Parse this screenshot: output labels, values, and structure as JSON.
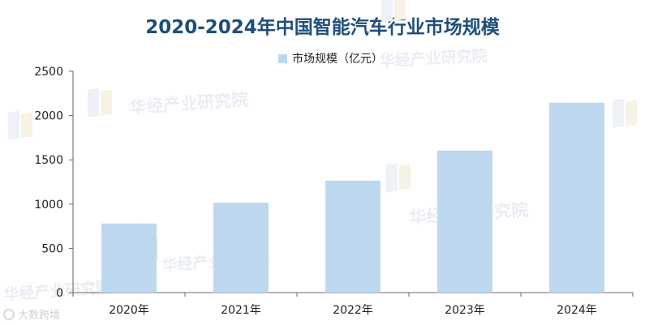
{
  "colors": {
    "title": "#1f4e79",
    "bar": "#bdd7ee",
    "axis": "#666666",
    "text": "#222222",
    "watermark": "#e9edf3"
  },
  "watermark": {
    "text": "华经产业研究院"
  },
  "source_logo": {
    "text": "大数跨境",
    "icon": "circle-logo-icon"
  },
  "chart_data": {
    "type": "bar",
    "title": "2020-2024年中国智能汽车行业市场规模",
    "categories": [
      "2020年",
      "2021年",
      "2022年",
      "2023年",
      "2024年"
    ],
    "series": [
      {
        "name": "市场规模（亿元）",
        "values": [
          780,
          1015,
          1265,
          1605,
          2145
        ]
      }
    ],
    "ylim": [
      0,
      2500
    ],
    "yticks": [
      0,
      500,
      1000,
      1500,
      2000,
      2500
    ],
    "xlabel": "",
    "ylabel": "",
    "grid": false,
    "legend": "top-center"
  }
}
